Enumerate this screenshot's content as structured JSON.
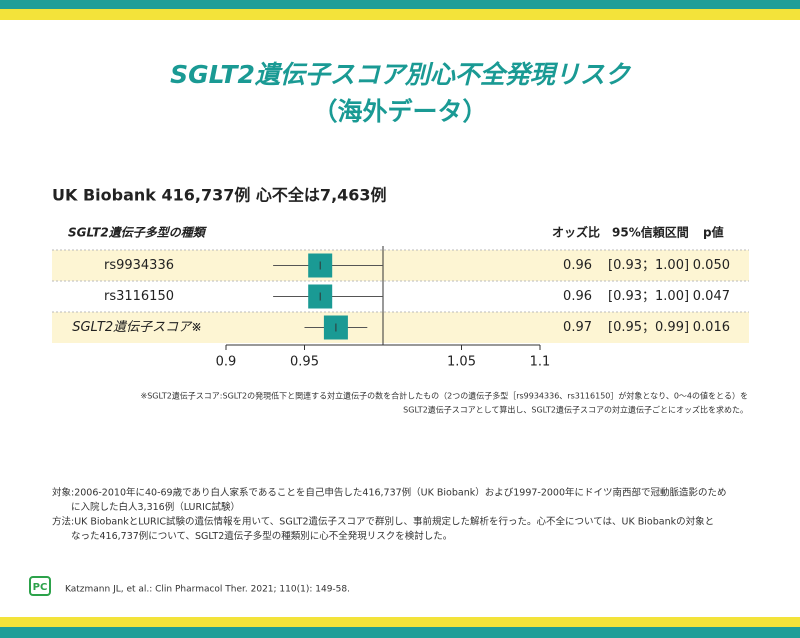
{
  "chart_data": {
    "type": "forest",
    "title": "SGLT2遺伝子スコア別心不全発現リスク",
    "title_line2": "（海外データ）",
    "subtitle": "UK Biobank 416,737例 心不全は7,463例",
    "category_header": "SGLT2遺伝子多型の種類",
    "columns": [
      "オッズ比",
      "95%信頼区間",
      "p値"
    ],
    "categories": [
      "rs9934336",
      "rs3116150",
      "SGLT2遺伝子スコア※"
    ],
    "values": [
      0.96,
      0.96,
      0.97
    ],
    "ci_low": [
      0.93,
      0.93,
      0.95
    ],
    "ci_high": [
      1.0,
      1.0,
      0.99
    ],
    "ci_labels": [
      "[0.93；1.00]",
      "[0.93；1.00]",
      "[0.95；0.99]"
    ],
    "p": [
      0.05,
      0.047,
      0.016
    ],
    "p_labels": [
      "0.050",
      "0.047",
      "0.016"
    ],
    "color": "#1a9a94",
    "reference_line": 1,
    "xlim": [
      0.9,
      1.1
    ],
    "xticks": [
      0.9,
      0.95,
      1.05,
      1.1
    ],
    "footnote": [
      "※SGLT2遺伝子スコア:SGLT2の発現低下と関連する対立遺伝子の数を合計したもの（2つの遺伝子多型［rs9934336、rs3116150］が対象となり、0～4の値をとる）を",
      "SGLT2遺伝子スコアとして算出し、SGLT2遺伝子スコアの対立遺伝子ごとにオッズ比を求めた。"
    ]
  },
  "notes": [
    "対象:2006-2010年に40-69歳であり白人家系であることを自己申告した416,737例（UK Biobank）および1997-2000年にドイツ南西部で冠動脈造影のため",
    "　　に入院した白人3,316例（LURIC試験）",
    "方法:UK BiobankとLURIC試験の遺伝情報を用いて、SGLT2遺伝子スコアで群別し、事前規定した解析を行った。心不全については、UK Biobankの対象と",
    "　　なった416,737例について、SGLT2遺伝子多型の種類別に心不全発現リスクを検討した。"
  ],
  "logo": "PC",
  "citation": "Katzmann JL, et al.: Clin Pharmacol Ther. 2021; 110(1): 149-58."
}
